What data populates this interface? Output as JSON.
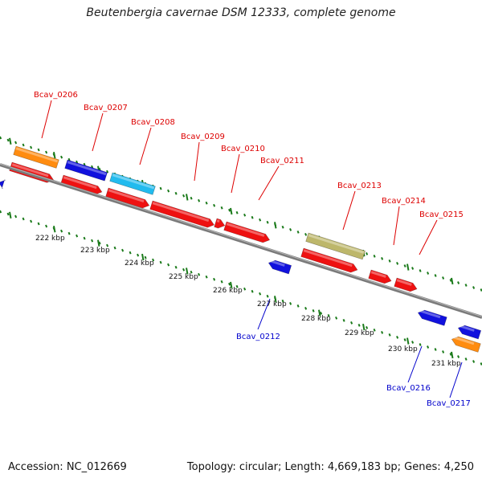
{
  "title": "Beutenbergia cavernae DSM 12333, complete genome",
  "footer": {
    "accession": "Accession: NC_012669",
    "summary": "Topology: circular; Length: 4,669,183 bp; Genes: 4,250"
  },
  "colors": {
    "red": "#ee1111",
    "blue": "#1111dd",
    "orange": "#ff8c10",
    "cyan": "#22bbee",
    "khaki": "#bdb76b",
    "backbone": "#808080",
    "tick": "#1a7a1a",
    "label_red": "#dd0000",
    "label_blue": "#0000cc"
  },
  "scale_labels": [
    "222 kbp",
    "223 kbp",
    "224 kbp",
    "225 kbp",
    "226 kbp",
    "227 kbp",
    "228 kbp",
    "229 kbp",
    "230 kbp",
    "231 kbp"
  ],
  "gene_labels": [
    {
      "name": "Bcav_0206",
      "strand": "plus"
    },
    {
      "name": "Bcav_0207",
      "strand": "plus"
    },
    {
      "name": "Bcav_0208",
      "strand": "plus"
    },
    {
      "name": "Bcav_0209",
      "strand": "plus"
    },
    {
      "name": "Bcav_0210",
      "strand": "plus"
    },
    {
      "name": "Bcav_0211",
      "strand": "plus"
    },
    {
      "name": "Bcav_0213",
      "strand": "plus"
    },
    {
      "name": "Bcav_0214",
      "strand": "plus"
    },
    {
      "name": "Bcav_0215",
      "strand": "plus"
    },
    {
      "name": "Bcav_0212",
      "strand": "minus"
    },
    {
      "name": "Bcav_0216",
      "strand": "minus"
    },
    {
      "name": "Bcav_0217",
      "strand": "minus"
    }
  ]
}
